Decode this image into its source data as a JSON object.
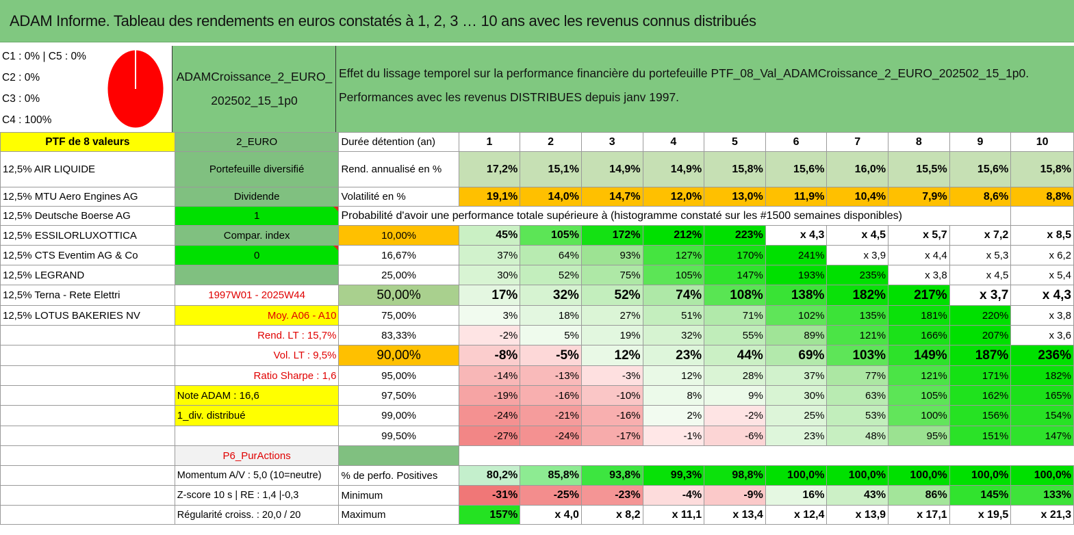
{
  "title": "ADAM Informe. Tableau des rendements en euros constatés à 1, 2, 3 … 10 ans avec les revenus connus distribués",
  "legend": [
    "C1 : 0% | C5 : 0%",
    "C2 : 0%",
    "C3 : 0%",
    "C4 : 100%"
  ],
  "pie_color": "#ff0000",
  "portfolio_name_lines": [
    "ADAMCroissance_2_EURO_",
    "202502_15_1p0"
  ],
  "description_lines": [
    "Effet du lissage temporel sur la performance financière du portefeuille PTF_08_Val_ADAMCroissance_2_EURO_202502_15_1p0.",
    "Performances avec les revenus DISTRIBUES depuis janv 1997."
  ],
  "rows": [
    {
      "c0": "PTF de 8 valeurs",
      "c1": "2_EURO",
      "c2": "Durée détention (an)",
      "vals": [
        "1",
        "2",
        "3",
        "4",
        "5",
        "6",
        "7",
        "8",
        "9",
        "10"
      ]
    },
    {
      "c0": "12,5% AIR LIQUIDE",
      "c1": "Portefeuille diversifié",
      "c2": "Rend. annualisé en %",
      "vals": [
        "17,2%",
        "15,1%",
        "14,9%",
        "14,9%",
        "15,8%",
        "15,6%",
        "16,0%",
        "15,5%",
        "15,6%",
        "15,8%"
      ]
    },
    {
      "c0": "12,5% MTU Aero Engines AG",
      "c1": "Dividende",
      "c2": "Volatilité en %",
      "vals": [
        "19,1%",
        "14,0%",
        "14,7%",
        "12,0%",
        "13,0%",
        "11,9%",
        "10,4%",
        "7,9%",
        "8,6%",
        "8,8%"
      ]
    },
    {
      "c0": "12,5% Deutsche Boerse AG",
      "c1": "1",
      "c2": "Probabilité d'avoir une performance totale supérieure à (histogramme constaté sur les #1500 semaines disponibles)",
      "vals": []
    },
    {
      "c0": "12,5% ESSILORLUXOTTICA",
      "c1": "Compar. index",
      "c2": "10,00%",
      "vals": [
        "45%",
        "105%",
        "172%",
        "212%",
        "223%",
        "x 4,3",
        "x 4,5",
        "x 5,7",
        "x 7,2",
        "x 8,5"
      ]
    },
    {
      "c0": "12,5% CTS Eventim AG & Co",
      "c1": "0",
      "c2": "16,67%",
      "vals": [
        "37%",
        "64%",
        "93%",
        "127%",
        "170%",
        "241%",
        "x 3,9",
        "x 4,4",
        "x 5,3",
        "x 6,2"
      ]
    },
    {
      "c0": "12,5% LEGRAND",
      "c1": "",
      "c2": "25,00%",
      "vals": [
        "30%",
        "52%",
        "75%",
        "105%",
        "147%",
        "193%",
        "235%",
        "x 3,8",
        "x 4,5",
        "x 5,4"
      ]
    },
    {
      "c0": "12,5% Terna - Rete Elettri",
      "c1": "1997W01 - 2025W44",
      "c2": "50,00%",
      "vals": [
        "17%",
        "32%",
        "52%",
        "74%",
        "108%",
        "138%",
        "182%",
        "217%",
        "x 3,7",
        "x 4,3"
      ]
    },
    {
      "c0": "12,5% LOTUS BAKERIES NV",
      "c1": "Moy. A06 - A10",
      "c2": "75,00%",
      "vals": [
        "3%",
        "18%",
        "27%",
        "51%",
        "71%",
        "102%",
        "135%",
        "181%",
        "220%",
        "x 3,8"
      ]
    },
    {
      "c0": "",
      "c1": "Rend. LT : 15,7%",
      "c2": "83,33%",
      "vals": [
        "-2%",
        "5%",
        "19%",
        "32%",
        "55%",
        "89%",
        "121%",
        "166%",
        "207%",
        "x 3,6"
      ]
    },
    {
      "c0": "",
      "c1": "Vol. LT : 9,5%",
      "c2": "90,00%",
      "vals": [
        "-8%",
        "-5%",
        "12%",
        "23%",
        "44%",
        "69%",
        "103%",
        "149%",
        "187%",
        "236%"
      ]
    },
    {
      "c0": "",
      "c1": "Ratio Sharpe : 1,6",
      "c2": "95,00%",
      "vals": [
        "-14%",
        "-13%",
        "-3%",
        "12%",
        "28%",
        "37%",
        "77%",
        "121%",
        "171%",
        "182%"
      ]
    },
    {
      "c0": "",
      "c1": "Note ADAM : 16,6",
      "c2": "97,50%",
      "vals": [
        "-19%",
        "-16%",
        "-10%",
        "8%",
        "9%",
        "30%",
        "63%",
        "105%",
        "162%",
        "165%"
      ]
    },
    {
      "c0": "",
      "c1": "1_div. distribué",
      "c2": "99,00%",
      "vals": [
        "-24%",
        "-21%",
        "-16%",
        "2%",
        "-2%",
        "25%",
        "53%",
        "100%",
        "156%",
        "154%"
      ]
    },
    {
      "c0": "",
      "c1": "",
      "c2": "99,50%",
      "vals": [
        "-27%",
        "-24%",
        "-17%",
        "-1%",
        "-6%",
        "23%",
        "48%",
        "95%",
        "151%",
        "147%"
      ]
    },
    {
      "c0": "",
      "c1": "P6_PurActions",
      "c2": "",
      "vals": []
    },
    {
      "c0": "",
      "c1": "Momentum A/V : 5,0 (10=neutre)",
      "c2": "% de perfo. Positives",
      "vals": [
        "80,2%",
        "85,8%",
        "93,8%",
        "99,3%",
        "98,8%",
        "100,0%",
        "100,0%",
        "100,0%",
        "100,0%",
        "100,0%"
      ]
    },
    {
      "c0": "",
      "c1": "Z-score 10 s | RE : 1,4 |-0,3",
      "c2": "Minimum",
      "vals": [
        "-31%",
        "-25%",
        "-23%",
        "-4%",
        "-9%",
        "16%",
        "43%",
        "86%",
        "145%",
        "133%"
      ]
    },
    {
      "c0": "",
      "c1": "Régularité croiss. : 20,0 / 20",
      "c2": "Maximum",
      "vals": [
        "157%",
        "x 4,0",
        "x 8,2",
        "x 11,1",
        "x 13,4",
        "x 12,4",
        "x 13,9",
        "x 17,1",
        "x 19,5",
        "x 21,3"
      ]
    }
  ]
}
